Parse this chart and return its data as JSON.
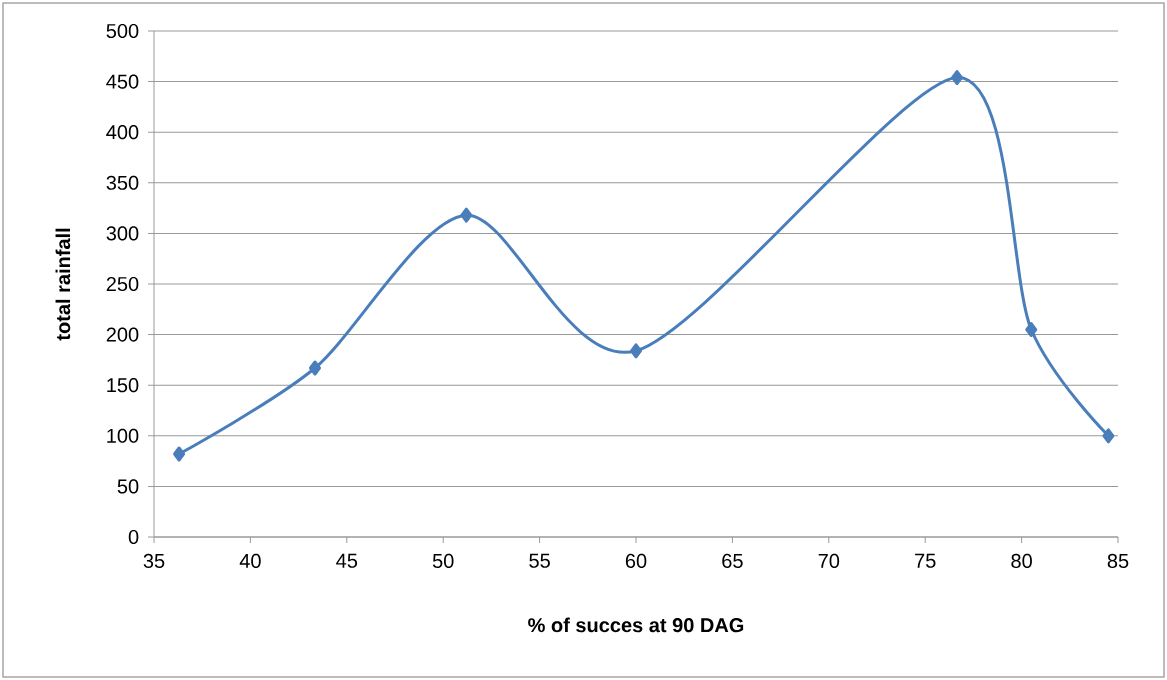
{
  "chart_data": {
    "type": "line",
    "xlabel": "% of succes at 90 DAG",
    "ylabel": "total rainfall",
    "x": [
      36.3,
      43.35,
      51.2,
      60.0,
      76.65,
      80.5,
      84.5
    ],
    "series": [
      {
        "color": "#4a7ebb",
        "values": [
          82,
          167,
          318,
          184,
          454,
          205,
          100
        ]
      }
    ],
    "xlim": [
      35,
      85
    ],
    "ylim": [
      0,
      500
    ],
    "xticks": [
      35,
      40,
      45,
      50,
      55,
      60,
      65,
      70,
      75,
      80,
      85
    ],
    "yticks": [
      0,
      50,
      100,
      150,
      200,
      250,
      300,
      350,
      400,
      450,
      500
    ],
    "grid": "y",
    "marker": "diamond",
    "line_style": "solid"
  }
}
